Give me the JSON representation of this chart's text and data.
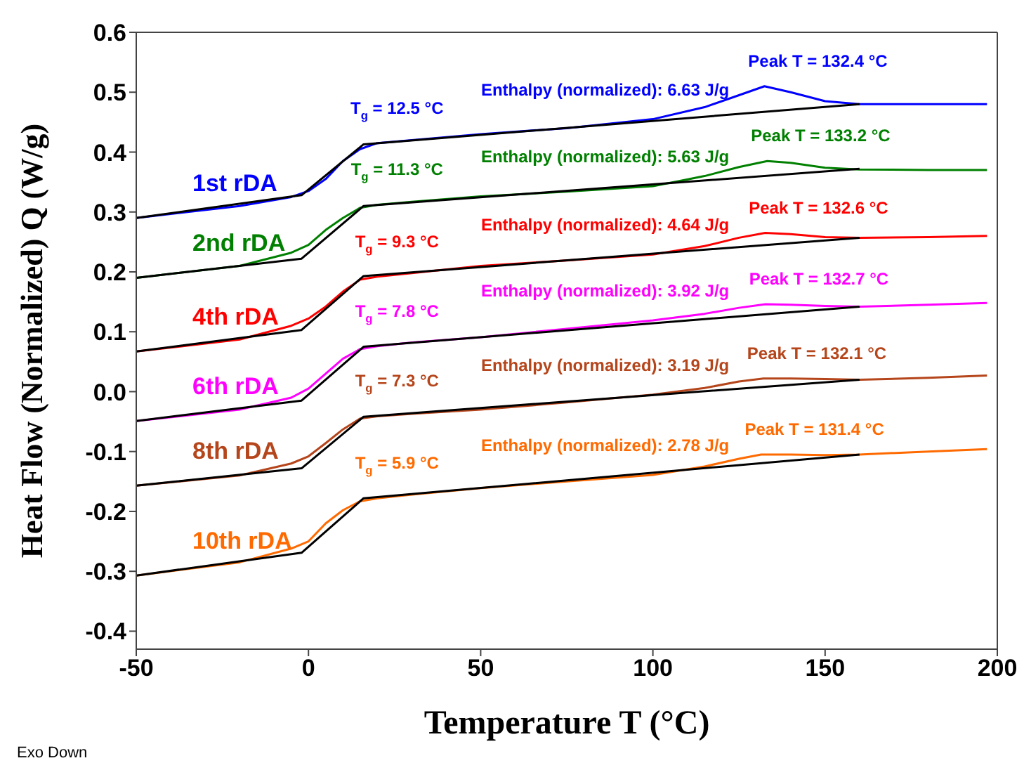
{
  "chart_data": {
    "type": "line",
    "xlabel": "Temperature T (°C)",
    "ylabel": "Heat Flow (Normalized)  Q (W/g)",
    "xlim": [
      -50,
      200
    ],
    "xticks": [
      -50,
      0,
      50,
      100,
      150,
      200
    ],
    "ylim": [
      -0.43,
      0.6
    ],
    "yticks": [
      -0.4,
      -0.3,
      -0.2,
      -0.1,
      {
        "value": 0,
        "label": "0.0"
      },
      0.1,
      0.2,
      0.3,
      0.4,
      0.5,
      0.6
    ],
    "grid": false,
    "legend": false,
    "marker": "none",
    "line_style": "solid",
    "series": [
      {
        "name": "1st rDA",
        "color": "#0000ff",
        "x": [
          -50,
          -20,
          -5,
          0,
          5,
          10,
          15,
          20,
          30,
          50,
          75,
          100,
          115,
          125,
          132.4,
          140,
          150,
          160,
          180,
          197
        ],
        "values": [
          0.29,
          0.31,
          0.325,
          0.335,
          0.355,
          0.385,
          0.405,
          0.415,
          0.42,
          0.43,
          0.44,
          0.455,
          0.475,
          0.495,
          0.51,
          0.5,
          0.485,
          0.48,
          0.48,
          0.48
        ]
      },
      {
        "name": "2nd rDA",
        "color": "#008000",
        "x": [
          -50,
          -20,
          -5,
          0,
          5,
          10,
          15,
          20,
          30,
          50,
          75,
          100,
          115,
          125,
          133.2,
          140,
          150,
          160,
          180,
          197
        ],
        "values": [
          0.19,
          0.21,
          0.232,
          0.245,
          0.27,
          0.29,
          0.307,
          0.312,
          0.317,
          0.326,
          0.334,
          0.343,
          0.36,
          0.375,
          0.385,
          0.382,
          0.374,
          0.371,
          0.37,
          0.37
        ]
      },
      {
        "name": "4th rDA",
        "color": "#ff0000",
        "x": [
          -50,
          -20,
          -5,
          0,
          5,
          10,
          15,
          20,
          30,
          50,
          75,
          100,
          115,
          125,
          132.6,
          140,
          150,
          160,
          180,
          197
        ],
        "values": [
          0.067,
          0.087,
          0.11,
          0.122,
          0.142,
          0.167,
          0.187,
          0.192,
          0.198,
          0.21,
          0.219,
          0.229,
          0.243,
          0.257,
          0.265,
          0.263,
          0.258,
          0.257,
          0.258,
          0.26
        ]
      },
      {
        "name": "6th rDA",
        "color": "#ff00ff",
        "x": [
          -50,
          -20,
          -5,
          0,
          5,
          10,
          15,
          20,
          30,
          50,
          75,
          100,
          115,
          125,
          132.7,
          140,
          150,
          160,
          180,
          197
        ],
        "values": [
          -0.049,
          -0.03,
          -0.01,
          0.005,
          0.03,
          0.055,
          0.071,
          0.076,
          0.082,
          0.091,
          0.105,
          0.119,
          0.13,
          0.14,
          0.146,
          0.145,
          0.143,
          0.142,
          0.145,
          0.148
        ]
      },
      {
        "name": "8th rDA",
        "color": "#b5451b",
        "x": [
          -50,
          -20,
          -5,
          0,
          5,
          10,
          15,
          20,
          30,
          50,
          75,
          100,
          115,
          125,
          132.1,
          140,
          150,
          160,
          180,
          197
        ],
        "values": [
          -0.157,
          -0.14,
          -0.12,
          -0.108,
          -0.086,
          -0.063,
          -0.045,
          -0.041,
          -0.037,
          -0.03,
          -0.018,
          -0.005,
          0.006,
          0.017,
          0.022,
          0.022,
          0.021,
          0.02,
          0.023,
          0.027
        ]
      },
      {
        "name": "10th rDA",
        "color": "#ff6a00",
        "x": [
          -50,
          -20,
          -5,
          0,
          5,
          10,
          15,
          20,
          30,
          50,
          75,
          100,
          115,
          125,
          131.4,
          140,
          150,
          160,
          180,
          197
        ],
        "values": [
          -0.307,
          -0.285,
          -0.262,
          -0.25,
          -0.22,
          -0.198,
          -0.183,
          -0.178,
          -0.172,
          -0.161,
          -0.15,
          -0.139,
          -0.125,
          -0.112,
          -0.105,
          -0.105,
          -0.106,
          -0.105,
          -0.1,
          -0.096
        ]
      },
      {
        "color": "#000000",
        "x": [
          -50,
          -2,
          16,
          160
        ],
        "values": [
          0.29,
          0.328,
          0.413,
          0.48
        ]
      },
      {
        "color": "#000000",
        "x": [
          -50,
          -2,
          16,
          160
        ],
        "values": [
          0.19,
          0.222,
          0.31,
          0.372
        ]
      },
      {
        "color": "#000000",
        "x": [
          -50,
          -2,
          16,
          160
        ],
        "values": [
          0.067,
          0.103,
          0.193,
          0.257
        ]
      },
      {
        "color": "#000000",
        "x": [
          -50,
          -2,
          16,
          160
        ],
        "values": [
          -0.049,
          -0.015,
          0.075,
          0.142
        ]
      },
      {
        "color": "#000000",
        "x": [
          -50,
          -2,
          16,
          160
        ],
        "values": [
          -0.157,
          -0.128,
          -0.042,
          0.02
        ]
      },
      {
        "color": "#000000",
        "x": [
          -50,
          -2,
          16,
          160
        ],
        "values": [
          -0.307,
          -0.269,
          -0.178,
          -0.105
        ]
      }
    ],
    "annotations": [
      "T$_{g}$ = 12.5 °C",
      "T$_{g}$ = 11.3 °C",
      "T$_{g}$ = 9.3 °C",
      "T$_{g}$ = 7.8 °C",
      "T$_{g}$ = 7.3 °C",
      "T$_{g}$ = 5.9 °C",
      "Enthalpy (normalized): 6.63 J/g",
      "Enthalpy (normalized): 5.63 J/g",
      "Enthalpy (normalized): 4.64 J/g",
      "Enthalpy (normalized): 3.92 J/g",
      "Enthalpy (normalized): 3.19 J/g",
      "Enthalpy (normalized): 2.78 J/g",
      "Peak T = 132.4 °C",
      "Peak T = 133.2 °C",
      "Peak T = 132.6 °C",
      "Peak T = 132.7 °C",
      "Peak T = 132.1 °C",
      "Peak T = 131.4 °C",
      "Exo Down"
    ]
  }
}
